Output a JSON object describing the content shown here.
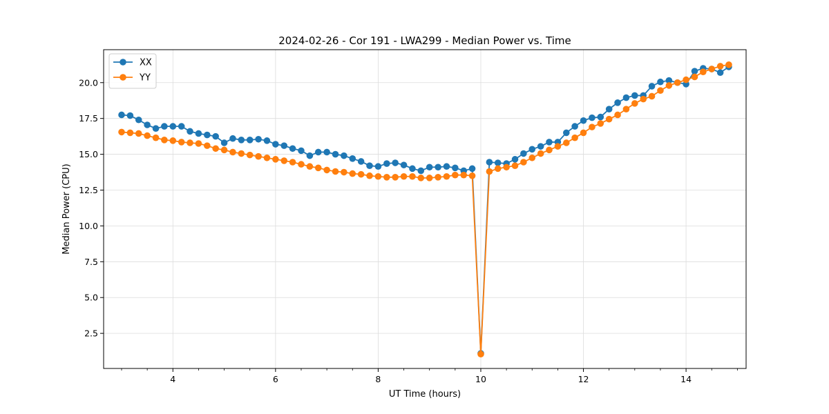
{
  "chart_data": {
    "type": "line",
    "title": "2024-02-26 - Cor 191 - LWA299 - Median Power vs. Time",
    "xlabel": "UT Time (hours)",
    "ylabel": "Median Power (CPU)",
    "xlim": [
      2.65,
      15.17
    ],
    "ylim": [
      0.05,
      22.3
    ],
    "x_ticks": [
      4,
      6,
      8,
      10,
      12,
      14
    ],
    "x_tick_labels": [
      "4",
      "6",
      "8",
      "10",
      "12",
      "14"
    ],
    "y_ticks": [
      2.5,
      5.0,
      7.5,
      10.0,
      12.5,
      15.0,
      17.5,
      20.0
    ],
    "y_tick_labels": [
      "2.5",
      "5.0",
      "7.5",
      "10.0",
      "12.5",
      "15.0",
      "17.5",
      "20.0"
    ],
    "grid": true,
    "legend_position": "top-left",
    "x": [
      3.0,
      3.167,
      3.333,
      3.5,
      3.667,
      3.833,
      4.0,
      4.167,
      4.333,
      4.5,
      4.667,
      4.833,
      5.0,
      5.167,
      5.333,
      5.5,
      5.667,
      5.833,
      6.0,
      6.167,
      6.333,
      6.5,
      6.667,
      6.833,
      7.0,
      7.167,
      7.333,
      7.5,
      7.667,
      7.833,
      8.0,
      8.167,
      8.333,
      8.5,
      8.667,
      8.833,
      9.0,
      9.167,
      9.333,
      9.5,
      9.667,
      9.833,
      10.0,
      10.167,
      10.333,
      10.5,
      10.667,
      10.833,
      11.0,
      11.167,
      11.333,
      11.5,
      11.667,
      11.833,
      12.0,
      12.167,
      12.333,
      12.5,
      12.667,
      12.833,
      13.0,
      13.167,
      13.333,
      13.5,
      13.667,
      13.833,
      14.0,
      14.167,
      14.333,
      14.5,
      14.667,
      14.833
    ],
    "series": [
      {
        "name": "XX",
        "color": "#1f77b4",
        "values": [
          17.75,
          17.7,
          17.4,
          17.05,
          16.8,
          16.95,
          16.95,
          16.95,
          16.6,
          16.45,
          16.35,
          16.25,
          15.8,
          16.1,
          16.0,
          16.0,
          16.05,
          15.95,
          15.7,
          15.6,
          15.4,
          15.25,
          14.9,
          15.15,
          15.15,
          15.0,
          14.9,
          14.7,
          14.5,
          14.2,
          14.15,
          14.35,
          14.4,
          14.25,
          14.0,
          13.85,
          14.1,
          14.1,
          14.15,
          14.05,
          13.85,
          14.0,
          1.1,
          14.45,
          14.4,
          14.35,
          14.65,
          15.05,
          15.35,
          15.55,
          15.85,
          15.85,
          16.5,
          16.95,
          17.35,
          17.55,
          17.6,
          18.15,
          18.6,
          18.95,
          19.1,
          19.1,
          19.75,
          20.05,
          20.15,
          20.0,
          19.9,
          20.8,
          21.0,
          20.95,
          20.7,
          21.1
        ]
      },
      {
        "name": "YY",
        "color": "#ff7f0e",
        "values": [
          16.55,
          16.5,
          16.45,
          16.3,
          16.15,
          16.0,
          15.95,
          15.85,
          15.8,
          15.75,
          15.6,
          15.4,
          15.3,
          15.15,
          15.05,
          14.95,
          14.85,
          14.75,
          14.65,
          14.55,
          14.45,
          14.3,
          14.15,
          14.05,
          13.9,
          13.8,
          13.75,
          13.65,
          13.6,
          13.5,
          13.45,
          13.4,
          13.4,
          13.45,
          13.45,
          13.35,
          13.35,
          13.4,
          13.45,
          13.55,
          13.55,
          13.5,
          1.05,
          13.8,
          14.0,
          14.1,
          14.2,
          14.45,
          14.75,
          15.05,
          15.3,
          15.55,
          15.8,
          16.15,
          16.5,
          16.9,
          17.15,
          17.45,
          17.75,
          18.15,
          18.55,
          18.85,
          19.05,
          19.45,
          19.8,
          20.0,
          20.2,
          20.4,
          20.75,
          20.95,
          21.15,
          21.25
        ]
      }
    ]
  }
}
